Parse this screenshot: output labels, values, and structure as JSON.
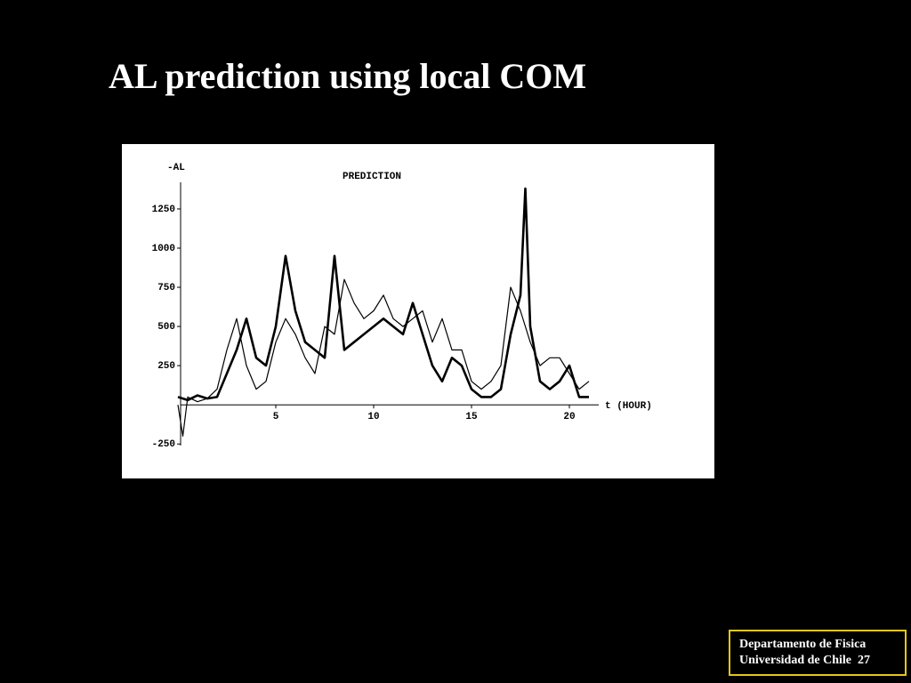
{
  "slide": {
    "title": "AL prediction using local COM",
    "footer": {
      "line1": "Departamento de Fisica",
      "line2": "Universidad de Chile",
      "page": "27"
    }
  },
  "chart_data": {
    "type": "line",
    "title": "PREDICTION",
    "y_label": "-AL",
    "x_label": "t  (HOUR)",
    "xlim": [
      0,
      21.5
    ],
    "ylim": [
      -260,
      1420
    ],
    "xticks": [
      5,
      10,
      15,
      20
    ],
    "yticks": [
      -250,
      250,
      500,
      750,
      1000,
      1250
    ],
    "grid": false,
    "series": [
      {
        "color": "#000000",
        "width": 1.2,
        "x": [
          0,
          0.25,
          0.5,
          1,
          1.5,
          2,
          2.5,
          3,
          3.5,
          4,
          4.5,
          5,
          5.5,
          6,
          6.5,
          7,
          7.5,
          8,
          8.5,
          9,
          9.5,
          10,
          10.5,
          11,
          11.5,
          12,
          12.5,
          13,
          13.5,
          14,
          14.5,
          15,
          15.5,
          16,
          16.5,
          17,
          17.5,
          18,
          18.5,
          19,
          19.5,
          20,
          20.5,
          21
        ],
        "values": [
          0,
          -200,
          50,
          20,
          40,
          100,
          350,
          550,
          250,
          100,
          150,
          400,
          550,
          450,
          300,
          200,
          500,
          450,
          800,
          650,
          550,
          600,
          700,
          550,
          500,
          550,
          600,
          400,
          550,
          350,
          350,
          150,
          100,
          150,
          250,
          750,
          600,
          400,
          250,
          300,
          300,
          200,
          100,
          150
        ]
      },
      {
        "color": "#000000",
        "width": 2.6,
        "x": [
          0,
          0.5,
          1,
          1.5,
          2,
          2.5,
          3,
          3.5,
          4,
          4.5,
          5,
          5.5,
          6,
          6.5,
          7,
          7.5,
          8,
          8.5,
          9,
          9.5,
          10,
          10.5,
          11,
          11.5,
          12,
          12.5,
          13,
          13.5,
          14,
          14.5,
          15,
          15.5,
          16,
          16.5,
          17,
          17.5,
          17.75,
          18,
          18.5,
          19,
          19.5,
          20,
          20.5,
          21
        ],
        "values": [
          50,
          30,
          60,
          40,
          50,
          200,
          350,
          550,
          300,
          250,
          500,
          950,
          600,
          400,
          350,
          300,
          950,
          350,
          400,
          450,
          500,
          550,
          500,
          450,
          650,
          450,
          250,
          150,
          300,
          250,
          100,
          50,
          50,
          100,
          450,
          700,
          1380,
          500,
          150,
          100,
          150,
          250,
          50,
          50
        ]
      }
    ]
  }
}
